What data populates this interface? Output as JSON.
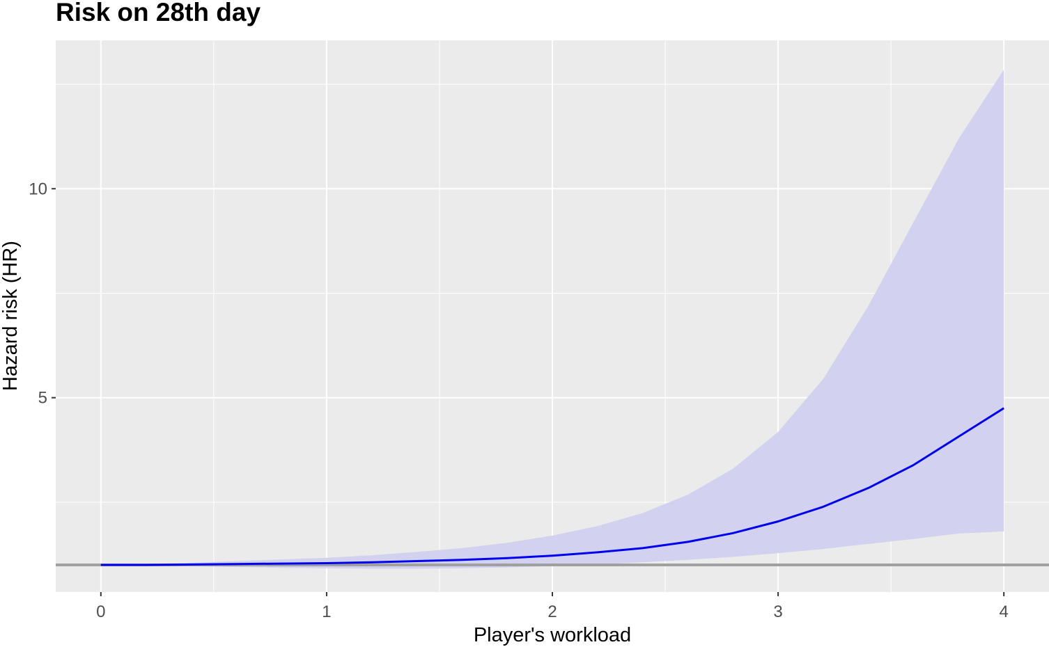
{
  "chart_data": {
    "type": "line",
    "title": "Risk on 28th day",
    "xlabel": "Player's workload",
    "ylabel": "Hazard risk (HR)",
    "xlim": [
      -0.2,
      4.2
    ],
    "ylim": [
      0.35,
      13.55
    ],
    "x_ticks": [
      0,
      1,
      2,
      3,
      4
    ],
    "x_tick_labels": [
      "0",
      "1",
      "2",
      "3",
      "4"
    ],
    "y_ticks": [
      5,
      10
    ],
    "y_tick_labels": [
      "5",
      "10"
    ],
    "x_minor_grid": [
      0.5,
      1.5,
      2.5,
      3.5
    ],
    "y_minor_grid": [
      2.5,
      7.5,
      12.5
    ],
    "grid": true,
    "panel_background": "#ebebeb",
    "reference_line": {
      "y": 1,
      "color": "#a0a0a0"
    },
    "series": [
      {
        "type": "line",
        "color": "#0000ee",
        "x": [
          0,
          0.2,
          0.4,
          0.6,
          0.8,
          1.0,
          1.2,
          1.4,
          1.6,
          1.8,
          2.0,
          2.2,
          2.4,
          2.6,
          2.8,
          3.0,
          3.2,
          3.4,
          3.6,
          3.8,
          4.0
        ],
        "y": [
          1.0,
          1.0,
          1.01,
          1.02,
          1.03,
          1.04,
          1.06,
          1.09,
          1.12,
          1.16,
          1.22,
          1.3,
          1.4,
          1.55,
          1.76,
          2.04,
          2.39,
          2.84,
          3.39,
          4.07,
          4.75
        ]
      }
    ],
    "ribbons": [
      {
        "type": "area",
        "color": "#d2d2f0",
        "x": [
          0,
          0.2,
          0.4,
          0.6,
          0.8,
          1.0,
          1.2,
          1.4,
          1.6,
          1.8,
          2.0,
          2.2,
          2.4,
          2.6,
          2.8,
          3.0,
          3.2,
          3.4,
          3.6,
          3.8,
          4.0
        ],
        "lower": [
          1.0,
          0.99,
          0.97,
          0.95,
          0.93,
          0.92,
          0.91,
          0.91,
          0.92,
          0.94,
          0.97,
          1.01,
          1.06,
          1.12,
          1.19,
          1.28,
          1.38,
          1.5,
          1.62,
          1.75,
          1.8
        ],
        "upper": [
          1.0,
          1.02,
          1.05,
          1.09,
          1.13,
          1.17,
          1.23,
          1.31,
          1.4,
          1.53,
          1.7,
          1.93,
          2.24,
          2.68,
          3.3,
          4.18,
          5.45,
          7.2,
          9.2,
          11.2,
          12.85
        ]
      }
    ]
  }
}
